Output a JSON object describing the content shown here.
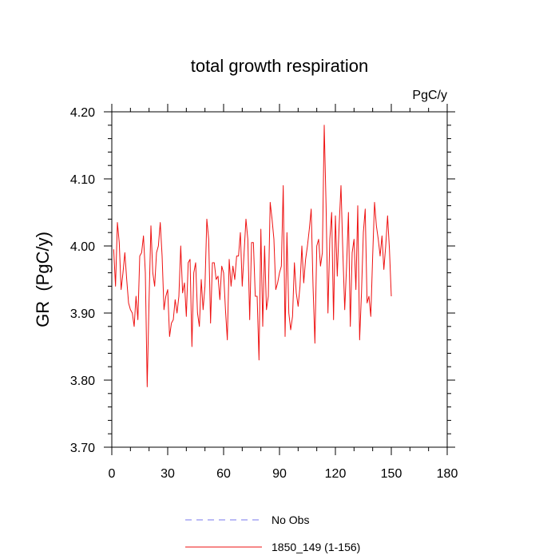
{
  "chart_data": {
    "type": "line",
    "title": "total growth respiration",
    "units_label": "PgC/y",
    "ylabel": "GR  (PgC/y)",
    "xlabel": "",
    "xlim": [
      0,
      180
    ],
    "ylim": [
      3.7,
      4.2
    ],
    "x_ticks": [
      0,
      30,
      60,
      90,
      120,
      150,
      180
    ],
    "x_tick_labels": [
      "0",
      "30",
      "60",
      "90",
      "120",
      "150",
      "180"
    ],
    "y_ticks": [
      3.7,
      3.8,
      3.9,
      4.0,
      4.1,
      4.2
    ],
    "y_tick_labels": [
      "3.70",
      "3.80",
      "3.90",
      "4.00",
      "4.10",
      "4.20"
    ],
    "legend": [
      {
        "name": "No Obs",
        "color": "#7777ee",
        "style": "dashed"
      },
      {
        "name": "1850_149 (1-156)",
        "color": "#ee1111",
        "style": "solid"
      }
    ],
    "series": [
      {
        "name": "1850_149 (1-156)",
        "color": "#ee1111",
        "x_start": 1,
        "values": [
          3.995,
          3.94,
          4.035,
          4.005,
          3.935,
          3.96,
          3.99,
          3.95,
          3.915,
          3.905,
          3.9,
          3.88,
          3.925,
          3.89,
          3.985,
          3.99,
          4.015,
          3.96,
          3.79,
          3.92,
          4.03,
          3.96,
          3.94,
          3.99,
          4.0,
          4.035,
          3.985,
          3.905,
          3.925,
          3.935,
          3.865,
          3.885,
          3.89,
          3.92,
          3.9,
          3.925,
          4.0,
          3.93,
          3.945,
          3.895,
          3.975,
          3.98,
          3.85,
          3.96,
          3.975,
          3.9,
          3.88,
          3.95,
          3.905,
          3.94,
          4.04,
          4.01,
          3.885,
          3.975,
          3.975,
          3.95,
          3.955,
          3.92,
          3.97,
          3.96,
          3.905,
          3.86,
          3.98,
          3.94,
          3.97,
          3.95,
          3.985,
          3.985,
          4.02,
          3.94,
          3.99,
          4.04,
          4.01,
          3.89,
          4.005,
          4.005,
          3.925,
          3.925,
          3.83,
          4.025,
          3.88,
          4.0,
          3.905,
          3.925,
          4.065,
          4.04,
          4.01,
          3.935,
          3.945,
          3.96,
          3.97,
          4.09,
          3.865,
          4.02,
          3.9,
          3.875,
          3.895,
          3.975,
          3.93,
          3.91,
          3.94,
          4.0,
          3.945,
          3.98,
          4.0,
          4.025,
          4.055,
          3.94,
          3.855,
          4.0,
          4.01,
          3.97,
          3.99,
          4.18,
          4.06,
          3.9,
          4.01,
          4.05,
          3.89,
          4.045,
          3.955,
          4.03,
          4.09,
          3.99,
          3.905,
          3.97,
          4.05,
          3.88,
          3.99,
          4.01,
          3.935,
          4.06,
          3.86,
          3.93,
          4.02,
          4.055,
          3.915,
          3.925,
          3.895,
          3.985,
          4.065,
          4.03,
          4.01,
          3.985,
          4.015,
          3.965,
          4.0,
          4.045,
          3.995,
          3.925
        ]
      }
    ]
  }
}
